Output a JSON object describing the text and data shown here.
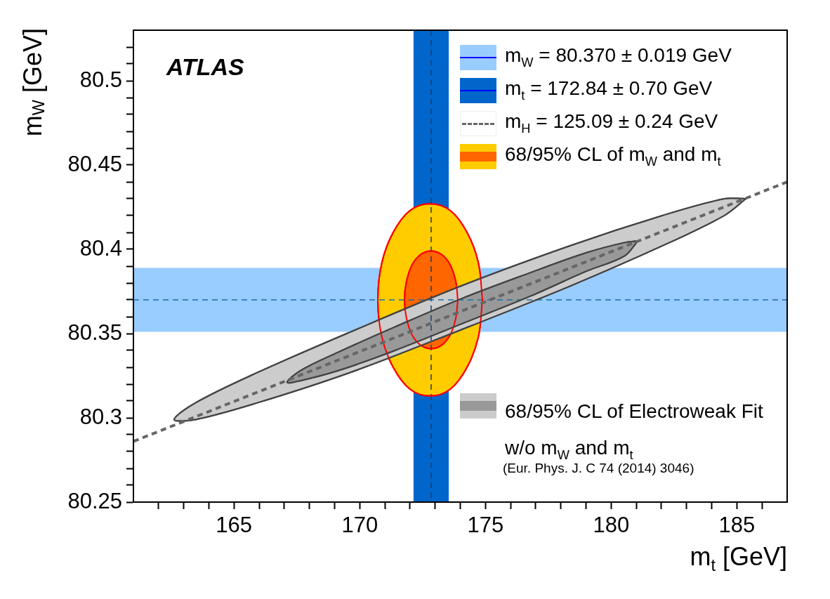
{
  "chart_data": {
    "type": "area",
    "xlabel": "m$_{t}$ [GeV]",
    "ylabel": "m$_{W}$ [GeV]",
    "annotations": [
      "ATLAS",
      "(Eur. Phys. J. C 74 (2014) 3046)"
    ],
    "xlim": [
      161,
      187
    ],
    "ylim": [
      80.25,
      80.53
    ],
    "xticks": [
      {
        "value": 162,
        "label": null
      },
      {
        "value": 163,
        "label": null
      },
      {
        "value": 164,
        "label": null
      },
      165,
      {
        "value": 166,
        "label": null
      },
      {
        "value": 167,
        "label": null
      },
      {
        "value": 168,
        "label": null
      },
      {
        "value": 169,
        "label": null
      },
      170,
      {
        "value": 171,
        "label": null
      },
      {
        "value": 172,
        "label": null
      },
      {
        "value": 173,
        "label": null
      },
      {
        "value": 174,
        "label": null
      },
      175,
      {
        "value": 176,
        "label": null
      },
      {
        "value": 177,
        "label": null
      },
      {
        "value": 178,
        "label": null
      },
      {
        "value": 179,
        "label": null
      },
      180,
      {
        "value": 181,
        "label": null
      },
      {
        "value": 182,
        "label": null
      },
      {
        "value": 183,
        "label": null
      },
      {
        "value": 184,
        "label": null
      },
      185,
      {
        "value": 186,
        "label": null
      }
    ],
    "yticks": [
      80.25,
      {
        "value": 80.26,
        "label": null
      },
      {
        "value": 80.27,
        "label": null
      },
      {
        "value": 80.28,
        "label": null
      },
      {
        "value": 80.29,
        "label": null
      },
      80.3,
      {
        "value": 80.31,
        "label": null
      },
      {
        "value": 80.32,
        "label": null
      },
      {
        "value": 80.33,
        "label": null
      },
      {
        "value": 80.34,
        "label": null
      },
      80.35,
      {
        "value": 80.36,
        "label": null
      },
      {
        "value": 80.37,
        "label": null
      },
      {
        "value": 80.38,
        "label": null
      },
      {
        "value": 80.39,
        "label": null
      },
      80.4,
      {
        "value": 80.41,
        "label": null
      },
      {
        "value": 80.42,
        "label": null
      },
      {
        "value": 80.43,
        "label": null
      },
      {
        "value": 80.44,
        "label": null
      },
      80.45,
      {
        "value": 80.46,
        "label": null
      },
      {
        "value": 80.47,
        "label": null
      },
      {
        "value": 80.48,
        "label": null
      },
      {
        "value": 80.49,
        "label": null
      },
      80.5,
      {
        "value": 80.51,
        "label": null
      },
      {
        "value": 80.52,
        "label": null
      }
    ],
    "legend": "right",
    "bands": [
      {
        "axis": "y",
        "from": 80.351,
        "to": 80.389,
        "label": "m$_{W}$ = 80.370 ± 0.019 GeV",
        "color": "#99ccff"
      },
      {
        "axis": "x",
        "from": 172.14,
        "to": 173.54,
        "label": "m$_{t}$ = 172.84 ± 0.70 GeV",
        "color": "#0066cc"
      }
    ],
    "ref_lines": [
      {
        "axis": "y",
        "value": 80.37,
        "color": "#1a6fa8",
        "line_style": "dashed"
      },
      {
        "axis": "x",
        "value": 172.84,
        "color": "#1a3d6b",
        "line_style": "dashed"
      }
    ],
    "series": [
      {
        "type": "line",
        "name": "m$_{H}$ = 125.09 ± 0.24 GeV",
        "color": "#666666",
        "line_style": "dashed",
        "x": [
          161,
          174,
          187
        ],
        "values": [
          80.286,
          80.363,
          80.44
        ]
      },
      {
        "name": "68/95% CL of m$_{W}$ and m$_{t}$",
        "color": "#ffcc00",
        "x": [
          174.88,
          174.72,
          174.27,
          173.6,
          172.8,
          172.0,
          171.33,
          170.88,
          170.72,
          170.88,
          171.33,
          172.0,
          172.8,
          173.6,
          174.27,
          174.72,
          174.88
        ],
        "values": [
          80.37,
          80.392,
          80.41,
          80.423,
          80.427,
          80.423,
          80.41,
          80.392,
          80.37,
          80.348,
          80.33,
          80.317,
          80.313,
          80.317,
          80.33,
          80.348,
          80.37
        ]
      },
      {
        "color": "#ff6600",
        "x": [
          173.9,
          173.82,
          173.59,
          173.25,
          172.84,
          172.43,
          172.09,
          171.86,
          171.78,
          171.86,
          172.09,
          172.43,
          172.84,
          173.25,
          173.59,
          173.82,
          173.9
        ],
        "values": [
          80.37,
          80.381,
          80.391,
          80.397,
          80.399,
          80.397,
          80.391,
          80.381,
          80.37,
          80.359,
          80.349,
          80.343,
          80.341,
          80.343,
          80.349,
          80.359,
          80.37
        ]
      },
      {
        "name": "68/95% CL of Electroweak Fit w/o m$_{W}$ and m$_{t}$",
        "color": "#cccccc",
        "x": [
          185.36,
          184.5,
          182.03,
          178.34,
          173.99,
          169.64,
          165.95,
          163.48,
          162.62,
          163.48,
          165.95,
          169.64,
          173.99,
          178.34,
          182.03,
          184.5,
          185.36
        ],
        "values": [
          80.43,
          80.43,
          80.42,
          80.402,
          80.378,
          80.351,
          80.327,
          80.309,
          80.299,
          80.299,
          80.309,
          80.327,
          80.352,
          80.378,
          80.402,
          80.42,
          80.43
        ]
      },
      {
        "color": "#999999",
        "x": [
          181.06,
          180.53,
          179.02,
          176.76,
          174.09,
          171.41,
          169.15,
          167.64,
          167.11,
          167.64,
          169.15,
          171.41,
          174.09,
          176.76,
          179.02,
          180.53,
          181.06
        ],
        "values": [
          80.405,
          80.404,
          80.398,
          80.386,
          80.371,
          80.354,
          80.339,
          80.328,
          80.321,
          80.322,
          80.328,
          80.34,
          80.356,
          80.372,
          80.387,
          80.396,
          80.405
        ]
      }
    ]
  }
}
